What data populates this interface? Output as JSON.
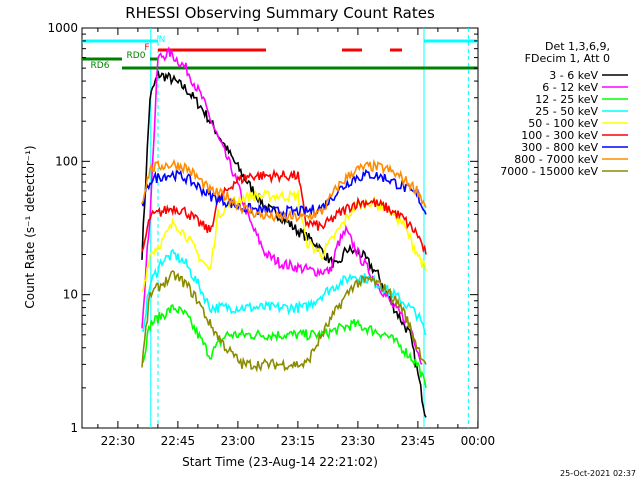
{
  "chart_data": {
    "type": "line",
    "title": "RHESSI Observing Summary Count Rates",
    "xlabel": "Start Time (23-Aug-14 22:21:02)",
    "ylabel": "Count Rate (s⁻¹ detector⁻¹)",
    "yscale": "log",
    "ylim": [
      1,
      1000
    ],
    "xlim_minutes": [
      0,
      99
    ],
    "x_ticks": [
      {
        "label": "22:30",
        "min": 8.97
      },
      {
        "label": "22:45",
        "min": 23.97
      },
      {
        "label": "23:00",
        "min": 38.97
      },
      {
        "label": "23:15",
        "min": 53.97
      },
      {
        "label": "23:30",
        "min": 68.97
      },
      {
        "label": "23:45",
        "min": 83.97
      },
      {
        "label": "00:00",
        "min": 98.97
      }
    ],
    "y_ticks": [
      {
        "label": "1",
        "value": 1
      },
      {
        "label": "10",
        "value": 10
      },
      {
        "label": "100",
        "value": 100
      },
      {
        "label": "1000",
        "value": 1000
      }
    ],
    "legend_title": [
      "Det 1,3,6,9,",
      "FDecim 1, Att 0"
    ],
    "legend_position": "right",
    "series": [
      {
        "name": "3 - 6 keV",
        "color": "#000000",
        "x": [
          15,
          17,
          19,
          22,
          26,
          30,
          34,
          38,
          42,
          46,
          50,
          54,
          58,
          62,
          64,
          66,
          70,
          74,
          78,
          82,
          84,
          86
        ],
        "values": [
          20,
          300,
          450,
          420,
          350,
          250,
          160,
          100,
          65,
          45,
          38,
          30,
          25,
          18,
          16,
          22,
          20,
          14,
          8,
          5,
          2.5,
          1.2
        ]
      },
      {
        "name": "6 - 12 keV",
        "color": "#ff00ff",
        "x": [
          15,
          17,
          19,
          22,
          26,
          30,
          34,
          38,
          42,
          46,
          50,
          54,
          58,
          62,
          64,
          66,
          70,
          74,
          78,
          82,
          85
        ],
        "values": [
          6,
          40,
          600,
          650,
          500,
          300,
          150,
          80,
          35,
          20,
          17,
          16,
          15,
          15,
          24,
          30,
          18,
          12,
          8,
          6,
          3
        ]
      },
      {
        "name": "12 - 25 keV",
        "color": "#00ff00",
        "x": [
          15,
          17,
          20,
          23,
          26,
          29,
          32,
          36,
          40,
          44,
          48,
          52,
          56,
          60,
          64,
          68,
          72,
          76,
          80,
          84,
          86
        ],
        "values": [
          3,
          6,
          7,
          8,
          7,
          5,
          3.5,
          5,
          5,
          5,
          5,
          5,
          5,
          5,
          5.5,
          6,
          5.5,
          5,
          4,
          3,
          2
        ]
      },
      {
        "name": "25 - 50 keV",
        "color": "#00ffff",
        "x": [
          15,
          17,
          20,
          23,
          26,
          29,
          32,
          36,
          40,
          44,
          48,
          52,
          56,
          60,
          64,
          68,
          72,
          76,
          80,
          84,
          86
        ],
        "values": [
          5,
          12,
          18,
          20,
          17,
          12,
          8,
          8,
          8,
          8,
          8,
          8,
          8,
          10,
          12,
          14,
          13,
          11,
          9,
          7,
          5
        ]
      },
      {
        "name": "50 - 100 keV",
        "color": "#ffff00",
        "x": [
          15,
          17,
          20,
          23,
          26,
          29,
          32,
          34,
          38,
          42,
          46,
          50,
          54,
          56,
          60,
          64,
          68,
          72,
          76,
          80,
          84,
          86
        ],
        "values": [
          10,
          20,
          25,
          35,
          28,
          20,
          15,
          40,
          50,
          55,
          55,
          55,
          55,
          25,
          20,
          30,
          45,
          50,
          45,
          35,
          20,
          15
        ]
      },
      {
        "name": "100 - 300 keV",
        "color": "#ff0000",
        "x": [
          15,
          17,
          20,
          23,
          26,
          29,
          32,
          34,
          38,
          42,
          46,
          50,
          54,
          56,
          60,
          64,
          68,
          72,
          76,
          80,
          84,
          86
        ],
        "values": [
          20,
          38,
          42,
          45,
          42,
          35,
          30,
          50,
          70,
          78,
          78,
          78,
          78,
          35,
          32,
          40,
          48,
          50,
          45,
          38,
          28,
          20
        ]
      },
      {
        "name": "300 - 800 keV",
        "color": "#0000ff",
        "x": [
          15,
          17,
          20,
          23,
          26,
          29,
          32,
          36,
          40,
          44,
          48,
          52,
          56,
          60,
          64,
          68,
          72,
          76,
          80,
          84,
          86
        ],
        "values": [
          45,
          72,
          78,
          80,
          75,
          65,
          55,
          50,
          45,
          43,
          42,
          42,
          42,
          45,
          60,
          75,
          80,
          75,
          65,
          55,
          40
        ]
      },
      {
        "name": "800 - 7000 keV",
        "color": "#ff8c00",
        "x": [
          15,
          17,
          20,
          23,
          26,
          29,
          32,
          36,
          40,
          44,
          48,
          52,
          56,
          60,
          64,
          68,
          72,
          76,
          80,
          84,
          86
        ],
        "values": [
          50,
          88,
          93,
          95,
          90,
          75,
          60,
          55,
          45,
          40,
          38,
          38,
          38,
          42,
          65,
          85,
          92,
          88,
          75,
          60,
          45
        ]
      },
      {
        "name": "7000 - 15000 keV",
        "color": "#8b8b00",
        "x": [
          15,
          17,
          20,
          23,
          26,
          29,
          32,
          36,
          40,
          44,
          48,
          52,
          56,
          60,
          64,
          68,
          72,
          76,
          80,
          84,
          86
        ],
        "values": [
          3,
          10,
          12,
          14,
          12,
          9,
          6,
          4,
          3,
          3,
          3,
          3,
          3,
          5,
          8,
          12,
          13,
          11,
          8,
          4,
          3
        ]
      }
    ],
    "annotations": [
      {
        "label": "F",
        "color": "#ff0000"
      },
      {
        "label": "RD0",
        "color": "#008000"
      },
      {
        "label": "RD6",
        "color": "#008000"
      },
      {
        "label": "N",
        "color": "#00ffff"
      }
    ],
    "night_lines_minutes": [
      17.2,
      85.5
    ],
    "dashed_lines_minutes": [
      19.0,
      96.6
    ],
    "flag_bars": [
      {
        "name": "F",
        "color": "#ff0000",
        "level": 1,
        "segments": [
          [
            19,
            46
          ],
          [
            65,
            70
          ],
          [
            77,
            80
          ]
        ]
      },
      {
        "name": "RD0",
        "color": "#008000",
        "level": 2,
        "segments": [
          [
            0,
            10
          ],
          [
            17,
            19
          ]
        ]
      },
      {
        "name": "RD6",
        "color": "#008000",
        "level": 3,
        "segments": [
          [
            10,
            38
          ],
          [
            38,
            59
          ],
          [
            59,
            91
          ],
          [
            91,
            99
          ]
        ]
      },
      {
        "name": "N",
        "color": "#00ffff",
        "level": 0,
        "segments": [
          [
            0,
            19
          ],
          [
            85.5,
            99
          ]
        ]
      }
    ],
    "grid": false
  },
  "footer": {
    "datestamp": "25-Oct-2021 02:37"
  }
}
